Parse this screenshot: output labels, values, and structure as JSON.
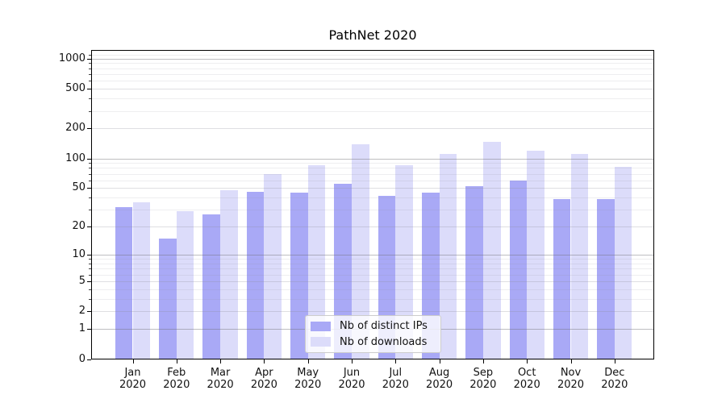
{
  "chart_data": {
    "type": "bar",
    "title": "PathNet 2020",
    "scale": "symlog (log10(1+x))",
    "grid": "both (major and minor horizontal gridlines, drawn above bars)",
    "legend_position": "lower center",
    "categories": [
      "Jan 2020",
      "Feb 2020",
      "Mar 2020",
      "Apr 2020",
      "May 2020",
      "Jun 2020",
      "Jul 2020",
      "Aug 2020",
      "Sep 2020",
      "Oct 2020",
      "Nov 2020",
      "Dec 2020"
    ],
    "series": [
      {
        "name": "Nb of distinct IPs",
        "color": "#a9a9f6",
        "values": [
          32,
          15,
          27,
          46,
          45,
          55,
          42,
          45,
          52,
          60,
          39,
          39
        ]
      },
      {
        "name": "Nb of downloads",
        "color": "#dcdcfa",
        "values": [
          36,
          29,
          48,
          70,
          86,
          140,
          85,
          112,
          146,
          120,
          111,
          82
        ]
      }
    ],
    "yticks": [
      0,
      1,
      2,
      5,
      10,
      20,
      50,
      100,
      200,
      500,
      1000
    ],
    "ytick_major_emphasis": [
      1,
      10,
      100,
      1000
    ],
    "minor_gridline_values": [
      3,
      4,
      6,
      7,
      8,
      9,
      30,
      40,
      60,
      70,
      80,
      90,
      300,
      400,
      600,
      700,
      800,
      900,
      1100
    ],
    "ylim": [
      0,
      1220
    ],
    "xlabel": "",
    "ylabel": ""
  }
}
